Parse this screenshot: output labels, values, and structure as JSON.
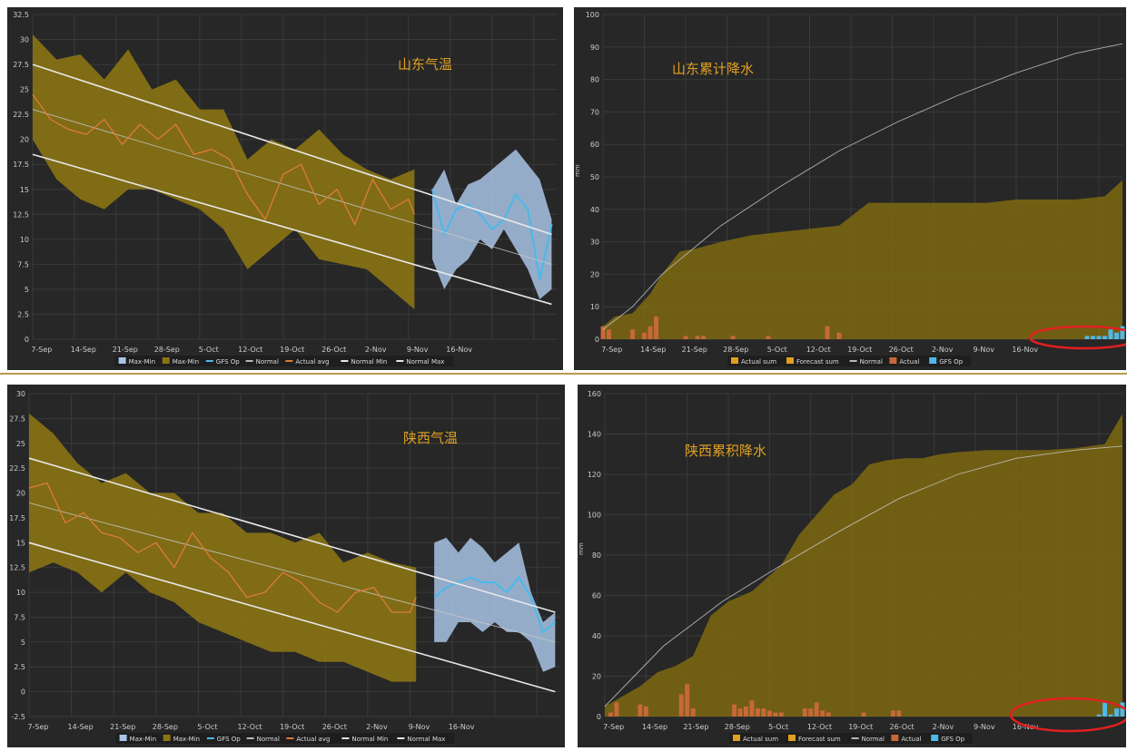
{
  "colors": {
    "background": "#272727",
    "grid": "#3a3a3a",
    "text": "#cccccc",
    "band": "#8a7414",
    "fill": "#7e6a10",
    "cyan": "#4fb8e8",
    "blueband": "#a9c4e6",
    "orange": "#e07a3a",
    "white": "#e8e8e8",
    "title": "#e0a020",
    "bar": "#c8683a",
    "legendbg": "#1e1e1e",
    "redcircle": "#e02020"
  },
  "charts": [
    {
      "id": "sd-temp",
      "title": "山东气温",
      "legend": [
        "Max-Min",
        "Max-Min",
        "GFS Op",
        "Normal",
        "Actual avg",
        "Normal Min",
        "Normal Max"
      ],
      "chart_data": {
        "type": "area",
        "title": "山东气温",
        "x_tick_labels": [
          "7-Sep",
          "14-Sep",
          "21-Sep",
          "28-Sep",
          "5-Oct",
          "12-Oct",
          "19-Oct",
          "26-Oct",
          "2-Nov",
          "9-Nov",
          "16-Nov"
        ],
        "y_tick_labels": [
          "0",
          "2.5",
          "5",
          "7.5",
          "10",
          "12.5",
          "15",
          "17.5",
          "20",
          "22.5",
          "25",
          "27.5",
          "30",
          "32.5"
        ],
        "ylim": [
          0,
          32.5
        ],
        "x_range_days": [
          0,
          76
        ],
        "series": [
          {
            "name": "Max-Min",
            "kind": "band",
            "x": [
              0,
              4,
              8,
              12,
              16,
              20,
              24,
              28,
              32,
              36,
              40,
              44,
              48,
              52,
              56,
              60,
              64
            ],
            "high": [
              30.5,
              28,
              28.5,
              26,
              29,
              25,
              26,
              23,
              23,
              18,
              20,
              19,
              21,
              18.5,
              17,
              16,
              17
            ],
            "low": [
              20,
              16,
              14,
              13,
              15,
              15,
              14,
              13,
              11,
              7,
              9,
              11,
              8,
              7.5,
              7,
              5,
              3
            ]
          },
          {
            "name": "Max-Min",
            "kind": "band",
            "x": [
              67,
              69,
              71,
              73,
              75,
              77,
              79,
              81,
              83,
              85,
              87
            ],
            "high": [
              15,
              17,
              13.5,
              15.5,
              16,
              17,
              18,
              19,
              17.5,
              16,
              12
            ],
            "low": [
              8,
              5,
              7,
              8,
              10,
              9,
              11,
              9,
              7,
              4,
              5
            ]
          },
          {
            "name": "GFS Op",
            "kind": "line",
            "x": [
              67,
              69,
              71,
              73,
              75,
              77,
              79,
              81,
              83,
              85,
              87
            ],
            "y": [
              15,
              10.5,
              13,
              13.5,
              12.5,
              11,
              12,
              14.5,
              13,
              6,
              11.5
            ]
          },
          {
            "name": "Normal",
            "kind": "line",
            "x": [
              0,
              87
            ],
            "y": [
              23,
              7.5
            ]
          },
          {
            "name": "Actual avg",
            "kind": "line",
            "x": [
              0,
              3,
              6,
              9,
              12,
              15,
              18,
              21,
              24,
              27,
              30,
              33,
              36,
              39,
              42,
              45,
              48,
              51,
              54,
              57,
              60,
              63,
              64
            ],
            "y": [
              24.5,
              22,
              21,
              20.5,
              22,
              19.5,
              21.5,
              20,
              21.5,
              18.5,
              19,
              18,
              14.5,
              12,
              16.5,
              17.5,
              13.5,
              15,
              11.5,
              16,
              13,
              14,
              12.5
            ]
          },
          {
            "name": "Normal Min",
            "kind": "line",
            "x": [
              0,
              87
            ],
            "y": [
              18.5,
              3.5
            ]
          },
          {
            "name": "Normal Max",
            "kind": "line",
            "x": [
              0,
              87
            ],
            "y": [
              27.5,
              10.5
            ]
          }
        ]
      }
    },
    {
      "id": "sd-rain",
      "title": "山东累计降水",
      "y_axis_label": "mm",
      "legend": [
        "Actual sum",
        "Forecast sum",
        "Normal",
        "Actual",
        "GFS Op"
      ],
      "chart_data": {
        "type": "area",
        "title": "山东累计降水",
        "ylabel": "mm",
        "x_tick_labels": [
          "7-Sep",
          "14-Sep",
          "21-Sep",
          "28-Sep",
          "5-Oct",
          "12-Oct",
          "19-Oct",
          "26-Oct",
          "2-Nov",
          "9-Nov",
          "16-Nov"
        ],
        "y_tick_labels": [
          "0",
          "10",
          "20",
          "30",
          "40",
          "50",
          "60",
          "70",
          "80",
          "90",
          "100"
        ],
        "ylim": [
          0,
          100
        ],
        "series": [
          {
            "name": "Actual sum",
            "kind": "area",
            "x": [
              0,
              2,
              5,
              8,
              10,
              13,
              16,
              20,
              25,
              30,
              35,
              40,
              45,
              50,
              55,
              60,
              65,
              70,
              75,
              80,
              85,
              88
            ],
            "y": [
              4,
              7,
              8,
              14,
              20,
              27,
              28,
              30,
              32,
              33,
              34,
              35,
              42,
              42,
              42,
              42,
              42,
              43,
              43,
              43,
              44,
              49
            ]
          },
          {
            "name": "Normal",
            "kind": "line",
            "x": [
              0,
              5,
              10,
              20,
              30,
              40,
              50,
              60,
              70,
              80,
              88
            ],
            "y": [
              3,
              10,
              20,
              35,
              47,
              58,
              67,
              75,
              82,
              88,
              91
            ]
          },
          {
            "name": "Actual",
            "kind": "bar",
            "x": [
              0,
              1,
              5,
              7,
              8,
              9,
              14,
              16,
              17,
              22,
              28,
              38,
              40
            ],
            "y": [
              4,
              3,
              3,
              2,
              4,
              7,
              1,
              1,
              1,
              1,
              1,
              4,
              2
            ]
          },
          {
            "name": "GFS Op",
            "kind": "bar",
            "x": [
              82,
              83,
              84,
              85,
              86,
              87,
              88
            ],
            "y": [
              1,
              1,
              1,
              1,
              3,
              2,
              4
            ]
          }
        ]
      }
    },
    {
      "id": "sx-temp",
      "title": "陕西气温",
      "legend": [
        "Max-Min",
        "Max-Min",
        "GFS Op",
        "Normal",
        "Actual avg",
        "Normal Min",
        "Normal Max"
      ],
      "chart_data": {
        "type": "area",
        "title": "陕西气温",
        "x_tick_labels": [
          "7-Sep",
          "14-Sep",
          "21-Sep",
          "28-Sep",
          "5-Oct",
          "12-Oct",
          "19-Oct",
          "26-Oct",
          "2-Nov",
          "9-Nov",
          "16-Nov"
        ],
        "y_tick_labels": [
          "-2.5",
          "0",
          "2.5",
          "5",
          "7.5",
          "10",
          "12.5",
          "15",
          "17.5",
          "20",
          "22.5",
          "25",
          "27.5",
          "30"
        ],
        "ylim": [
          -2.5,
          30
        ],
        "series": [
          {
            "name": "Max-Min",
            "kind": "band",
            "x": [
              0,
              4,
              8,
              12,
              16,
              20,
              24,
              28,
              32,
              36,
              40,
              44,
              48,
              52,
              56,
              60,
              64
            ],
            "high": [
              28,
              26,
              23,
              21,
              22,
              20,
              20,
              18,
              18,
              16,
              16,
              15,
              16,
              13,
              14,
              13,
              12.5
            ],
            "low": [
              12,
              13,
              12,
              10,
              12,
              10,
              9,
              7,
              6,
              5,
              4,
              4,
              3,
              3,
              2,
              1,
              1
            ]
          },
          {
            "name": "Max-Min",
            "kind": "band",
            "x": [
              67,
              69,
              71,
              73,
              75,
              77,
              79,
              81,
              83,
              85,
              87
            ],
            "high": [
              15,
              15.5,
              14,
              15.5,
              14.5,
              13,
              14,
              15,
              10,
              7,
              8
            ],
            "low": [
              5,
              5,
              7,
              7,
              6,
              7,
              6,
              6,
              5,
              2,
              2.5
            ]
          },
          {
            "name": "GFS Op",
            "kind": "line",
            "x": [
              67,
              69,
              71,
              73,
              75,
              77,
              79,
              81,
              83,
              85,
              87
            ],
            "y": [
              9.5,
              10.5,
              11,
              11.5,
              11,
              11,
              10,
              11.5,
              9.5,
              6,
              7
            ]
          },
          {
            "name": "Normal",
            "kind": "line",
            "x": [
              0,
              87
            ],
            "y": [
              19,
              5
            ]
          },
          {
            "name": "Actual avg",
            "kind": "line",
            "x": [
              0,
              3,
              6,
              9,
              12,
              15,
              18,
              21,
              24,
              27,
              30,
              33,
              36,
              39,
              42,
              45,
              48,
              51,
              54,
              57,
              60,
              63,
              64
            ],
            "y": [
              20.5,
              21,
              17,
              18,
              16,
              15.5,
              14,
              15,
              12.5,
              16,
              13.5,
              12,
              9.5,
              10,
              12,
              11,
              9,
              8,
              10,
              10.5,
              8,
              8,
              9.5
            ]
          },
          {
            "name": "Normal Min",
            "kind": "line",
            "x": [
              0,
              87
            ],
            "y": [
              15,
              0
            ]
          },
          {
            "name": "Normal Max",
            "kind": "line",
            "x": [
              0,
              87
            ],
            "y": [
              23.5,
              8
            ]
          }
        ]
      }
    },
    {
      "id": "sx-rain",
      "title": "陕西累积降水",
      "y_axis_label": "mm",
      "legend": [
        "Actual sum",
        "Forecast sum",
        "Normal",
        "Actual",
        "GFS Op"
      ],
      "chart_data": {
        "type": "area",
        "title": "陕西累积降水",
        "ylabel": "mm",
        "x_tick_labels": [
          "7-Sep",
          "14-Sep",
          "21-Sep",
          "28-Sep",
          "5-Oct",
          "12-Oct",
          "19-Oct",
          "26-Oct",
          "2-Nov",
          "9-Nov",
          "16-Nov"
        ],
        "y_tick_labels": [
          "0",
          "20",
          "40",
          "60",
          "80",
          "100",
          "120",
          "140",
          "160"
        ],
        "ylim": [
          0,
          160
        ],
        "series": [
          {
            "name": "Actual sum",
            "kind": "area",
            "x": [
              0,
              3,
              6,
              9,
              12,
              15,
              18,
              21,
              25,
              30,
              33,
              36,
              39,
              42,
              45,
              48,
              51,
              54,
              57,
              60,
              65,
              70,
              75,
              80,
              85,
              88
            ],
            "y": [
              5,
              10,
              15,
              22,
              25,
              30,
              50,
              57,
              62,
              75,
              90,
              100,
              110,
              115,
              125,
              127,
              128,
              128,
              130,
              131,
              132,
              132,
              132,
              133,
              135,
              150
            ],
            "fill_until": 88
          },
          {
            "name": "Normal",
            "kind": "line",
            "x": [
              0,
              5,
              10,
              20,
              30,
              40,
              50,
              60,
              70,
              80,
              88
            ],
            "y": [
              5,
              20,
              35,
              57,
              75,
              92,
              108,
              120,
              128,
              132,
              134
            ]
          },
          {
            "name": "Actual",
            "kind": "bar",
            "x": [
              1,
              2,
              6,
              7,
              13,
              14,
              15,
              22,
              23,
              24,
              25,
              26,
              27,
              28,
              29,
              30,
              34,
              35,
              36,
              37,
              38,
              44,
              49,
              50
            ],
            "y": [
              2,
              7,
              6,
              5,
              11,
              16,
              4,
              6,
              4,
              5,
              8,
              4,
              4,
              3,
              2,
              2,
              4,
              4,
              7,
              3,
              2,
              2,
              3,
              3
            ],
            "hidden_x_offset": 0
          },
          {
            "name": "GFS Op",
            "kind": "bar",
            "x": [
              84,
              85,
              86,
              87,
              88
            ],
            "y": [
              1,
              7,
              1,
              4,
              7
            ]
          }
        ]
      }
    }
  ]
}
